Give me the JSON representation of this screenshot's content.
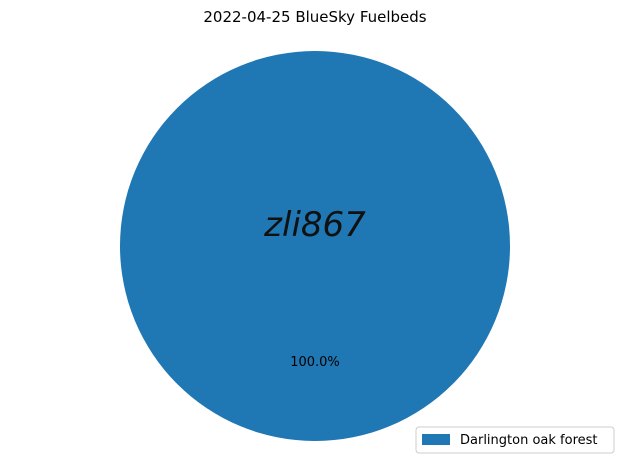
{
  "chart_data": {
    "type": "pie",
    "title": "2022-04-25 BlueSky Fuelbeds",
    "slices": [
      {
        "label": "Darlington oak forest",
        "value": 100.0,
        "pct_label": "100.0%",
        "color": "#1f77b4"
      }
    ],
    "watermark": "zli867",
    "legend_position": "lower-right"
  }
}
